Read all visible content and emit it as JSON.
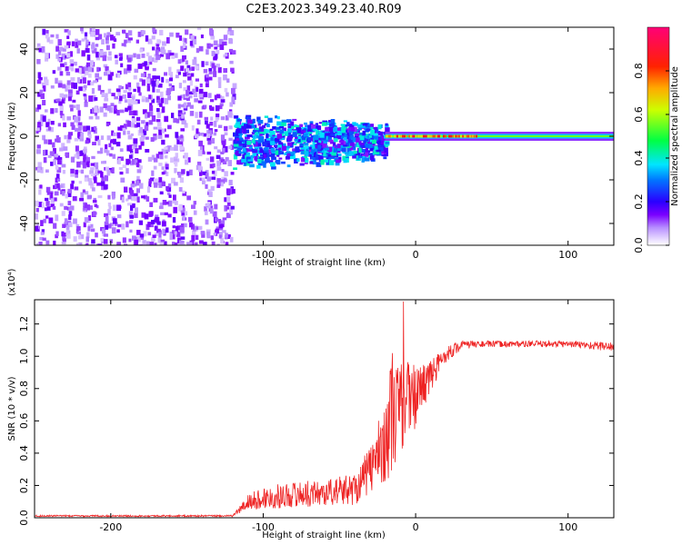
{
  "title": "C2E3.2023.349.23.40.R09",
  "chart_data": [
    {
      "type": "heatmap",
      "xlabel": "Height of straight line (km)",
      "ylabel": "Frequency (Hz)",
      "xlim": [
        -250,
        130
      ],
      "ylim": [
        -50,
        50
      ],
      "xticks": [
        -200,
        -100,
        0,
        100
      ],
      "yticks": [
        -40,
        -20,
        0,
        20,
        40
      ],
      "colorbar": {
        "label": "Normalized spectral amplitude",
        "range": [
          0,
          1
        ],
        "ticks": [
          0.0,
          0.2,
          0.4,
          0.6,
          0.8
        ],
        "tick_labels": [
          "0.0",
          "0.2",
          "0.4",
          "0.6",
          "0.8"
        ],
        "colors": [
          "#ffffff",
          "#c8a8f8",
          "#7a00ff",
          "#0000ff",
          "#00ccff",
          "#00ff66",
          "#ffff00",
          "#ff8800",
          "#ff0000",
          "#ff0088"
        ]
      },
      "regions": [
        {
          "x_range": [
            -250,
            -120
          ],
          "freq_range": [
            -50,
            50
          ],
          "amplitude": 0.08,
          "pattern": "broadband noise"
        },
        {
          "x_range": [
            -120,
            -20
          ],
          "freq_range": [
            -15,
            10
          ],
          "amplitude": 0.2,
          "pattern": "spread signal"
        },
        {
          "x_range": [
            -20,
            130
          ],
          "freq_range": [
            -1,
            1
          ],
          "amplitude": 0.7,
          "pattern": "narrow line at 0 Hz"
        }
      ]
    },
    {
      "type": "line",
      "xlabel": "Height of straight line (km)",
      "ylabel": "SNR (10 * v/v)",
      "y_multiplier": "(x10⁴)",
      "xlim": [
        -250,
        130
      ],
      "ylim": [
        0,
        1.35
      ],
      "xticks": [
        -200,
        -100,
        0,
        100
      ],
      "yticks": [
        0.0,
        0.2,
        0.4,
        0.6,
        0.8,
        1.0,
        1.2
      ],
      "ytick_labels": [
        "0.0",
        "0.2",
        "0.4",
        "0.6",
        "0.8",
        "1.0",
        "1.2"
      ],
      "color": "#ee2222",
      "x": [
        -250,
        -200,
        -150,
        -120,
        -110,
        -100,
        -80,
        -60,
        -40,
        -30,
        -20,
        -15,
        -10,
        0,
        10,
        20,
        30,
        40,
        60,
        80,
        100,
        130
      ],
      "y": [
        0.01,
        0.01,
        0.01,
        0.01,
        0.08,
        0.1,
        0.12,
        0.13,
        0.15,
        0.25,
        0.4,
        0.55,
        0.6,
        0.7,
        0.85,
        1.0,
        1.06,
        1.07,
        1.07,
        1.07,
        1.07,
        1.05
      ],
      "noise_amplitude": [
        0.005,
        0.005,
        0.005,
        0.005,
        0.05,
        0.07,
        0.08,
        0.08,
        0.1,
        0.15,
        0.25,
        0.4,
        0.3,
        0.2,
        0.1,
        0.05,
        0.03,
        0.02,
        0.02,
        0.02,
        0.02,
        0.03
      ]
    }
  ]
}
